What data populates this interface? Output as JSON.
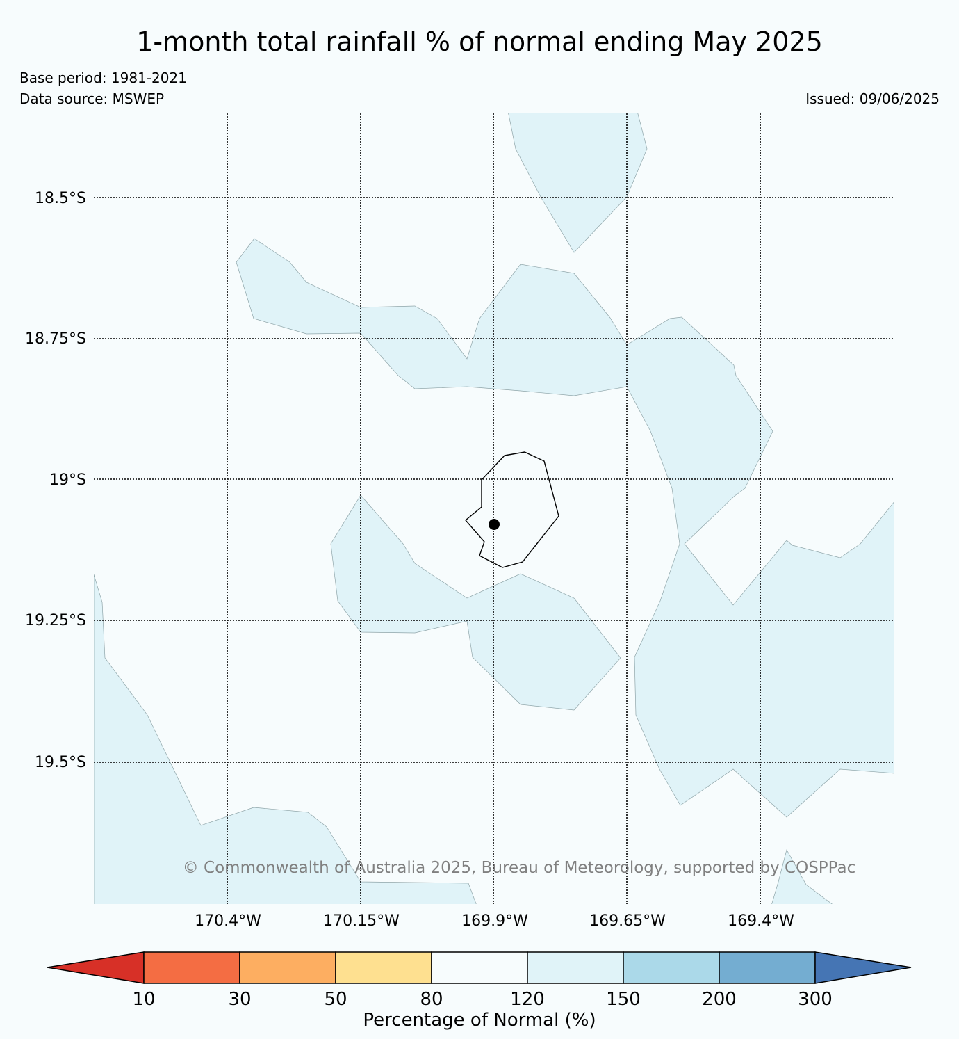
{
  "title": "1-month total rainfall % of normal ending May 2025",
  "base_period": "Base period: 1981-2021",
  "data_source": "Data source: MSWEP",
  "issued": "Issued: 09/06/2025",
  "copyright": "© Commonwealth of Australia 2025, Bureau of Meteorology, supported by COSPPac",
  "map": {
    "latitude_labels": [
      "18.5°S",
      "18.75°S",
      "19°S",
      "19.25°S",
      "19.5°S"
    ],
    "longitude_labels": [
      "170.4°W",
      "170.15°W",
      "169.9°W",
      "169.65°W",
      "169.4°W"
    ],
    "background_color": "#f7fcfd",
    "fill_color": "#e0f3f8",
    "island_marker": "station-dot"
  },
  "colorbar": {
    "title": "Percentage of Normal (%)",
    "tick_labels": [
      "10",
      "30",
      "50",
      "80",
      "120",
      "150",
      "200",
      "300"
    ],
    "colors": [
      "#d73027",
      "#f46d43",
      "#fdae61",
      "#fee090",
      "#f7fcfd",
      "#e0f3f8",
      "#abd9e9",
      "#74add1",
      "#4575b4"
    ]
  }
}
